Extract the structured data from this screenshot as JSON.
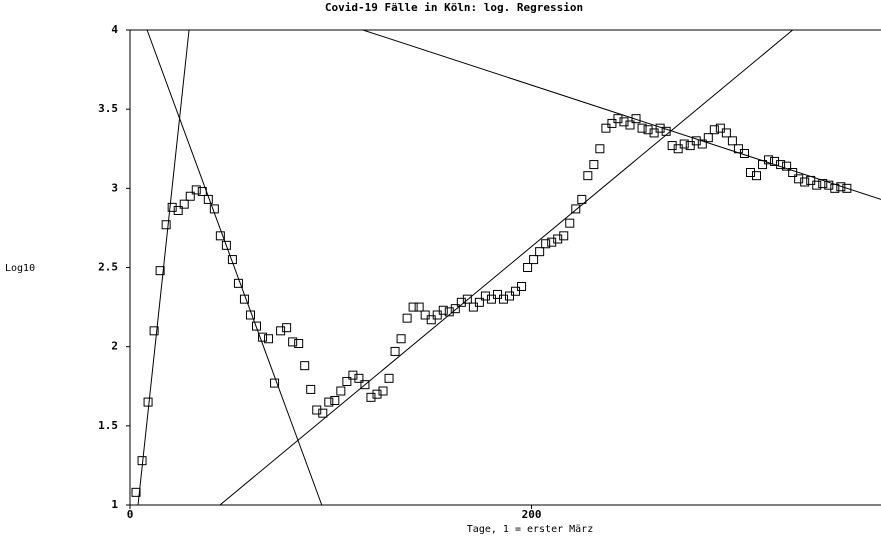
{
  "chart_data": {
    "type": "scatter",
    "title": "Covid-19 Fälle in Köln: log. Regression",
    "xlabel": "Tage, 1 = erster März",
    "ylabel": "Log10",
    "xlim": [
      0,
      374
    ],
    "ylim": [
      1,
      4
    ],
    "xticks": [
      0,
      200
    ],
    "yticks": [
      1,
      1.5,
      2,
      2.5,
      3,
      3.5,
      4
    ],
    "color": "#000000",
    "x": [
      3,
      6,
      9,
      12,
      15,
      18,
      21,
      24,
      27,
      30,
      33,
      36,
      39,
      42,
      45,
      48,
      51,
      54,
      57,
      60,
      63,
      66,
      69,
      72,
      75,
      78,
      81,
      84,
      87,
      90,
      93,
      96,
      99,
      102,
      105,
      108,
      111,
      114,
      117,
      120,
      123,
      126,
      129,
      132,
      135,
      138,
      141,
      144,
      147,
      150,
      153,
      156,
      159,
      162,
      165,
      168,
      171,
      174,
      177,
      180,
      183,
      186,
      189,
      192,
      195,
      198,
      201,
      204,
      207,
      210,
      213,
      216,
      219,
      222,
      225,
      228,
      231,
      234,
      237,
      240,
      243,
      246,
      249,
      252,
      255,
      258,
      261,
      264,
      267,
      270,
      273,
      276,
      279,
      282,
      285,
      288,
      291,
      294,
      297,
      300,
      303,
      306,
      309,
      312,
      315,
      318,
      321,
      324,
      327,
      330,
      333,
      336,
      339,
      342,
      345,
      348,
      351,
      354,
      357
    ],
    "values": [
      1.08,
      1.28,
      1.65,
      2.1,
      2.48,
      2.77,
      2.88,
      2.86,
      2.9,
      2.95,
      2.99,
      2.98,
      2.93,
      2.87,
      2.7,
      2.64,
      2.55,
      2.4,
      2.3,
      2.2,
      2.13,
      2.06,
      2.05,
      1.77,
      2.1,
      2.12,
      2.03,
      2.02,
      1.88,
      1.73,
      1.6,
      1.58,
      1.65,
      1.66,
      1.72,
      1.78,
      1.82,
      1.8,
      1.76,
      1.68,
      1.7,
      1.72,
      1.8,
      1.97,
      2.05,
      2.18,
      2.25,
      2.25,
      2.2,
      2.17,
      2.2,
      2.23,
      2.22,
      2.24,
      2.28,
      2.3,
      2.25,
      2.28,
      2.32,
      2.3,
      2.33,
      2.3,
      2.32,
      2.35,
      2.38,
      2.5,
      2.55,
      2.6,
      2.65,
      2.66,
      2.68,
      2.7,
      2.78,
      2.87,
      2.93,
      3.08,
      3.15,
      3.25,
      3.38,
      3.41,
      3.44,
      3.42,
      3.4,
      3.44,
      3.38,
      3.37,
      3.35,
      3.38,
      3.36,
      3.27,
      3.25,
      3.28,
      3.27,
      3.3,
      3.28,
      3.32,
      3.37,
      3.38,
      3.35,
      3.3,
      3.25,
      3.22,
      3.1,
      3.08,
      3.15,
      3.18,
      3.17,
      3.15,
      3.14,
      3.1,
      3.06,
      3.04,
      3.05,
      3.02,
      3.03,
      3.02,
      3.0,
      3.01,
      3.0
    ],
    "lines": [
      {
        "x": [
          4,
          29.4
        ],
        "values": [
          1,
          4
        ]
      },
      {
        "x": [
          8.5,
          95.5
        ],
        "values": [
          4,
          1
        ]
      },
      {
        "x": [
          44.8,
          330
        ],
        "values": [
          1,
          4
        ]
      },
      {
        "x": [
          116,
          374
        ],
        "values": [
          4,
          2.93
        ]
      }
    ]
  }
}
